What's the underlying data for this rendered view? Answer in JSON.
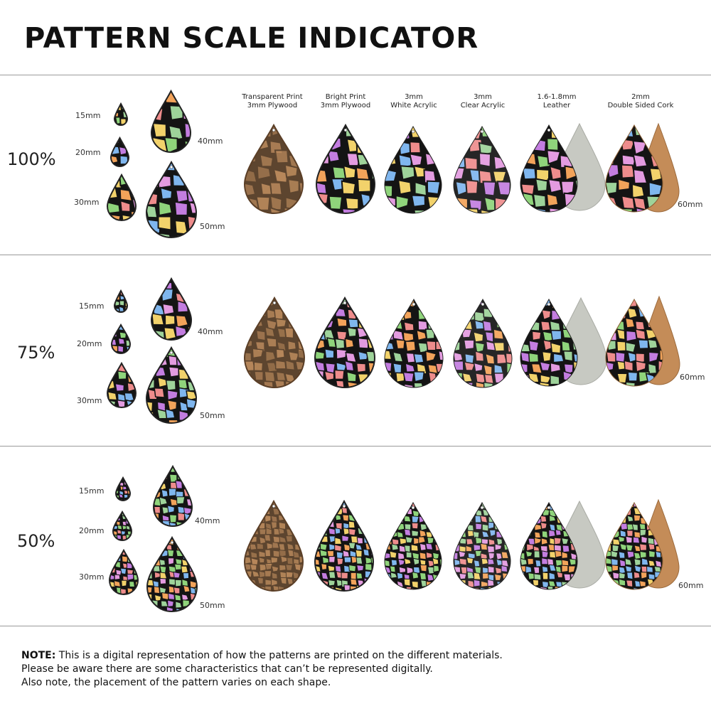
{
  "title": "PATTERN SCALE INDICATOR",
  "materials": [
    {
      "line1": "Transparent Print",
      "line2": "3mm Plywood",
      "style": "plywood"
    },
    {
      "line1": "Bright Print",
      "line2": "3mm Plywood",
      "style": "bright"
    },
    {
      "line1": "3mm",
      "line2": "White Acrylic",
      "style": "white"
    },
    {
      "line1": "3mm",
      "line2": "Clear Acrylic",
      "style": "clear"
    },
    {
      "line1": "1.6-1.8mm",
      "line2": "Leather",
      "style": "leather"
    },
    {
      "line1": "2mm",
      "line2": "Double Sided Cork",
      "style": "cork"
    }
  ],
  "sizes": {
    "s15": "15mm",
    "s20": "20mm",
    "s30": "30mm",
    "s40": "40mm",
    "s50": "50mm",
    "s60": "60mm"
  },
  "scales": [
    {
      "label": "100%",
      "tile_scale": 1.0
    },
    {
      "label": "75%",
      "tile_scale": 0.75
    },
    {
      "label": "50%",
      "tile_scale": 0.5
    }
  ],
  "note": {
    "bold": "NOTE:",
    "line1": " This is a digital representation of how the patterns are printed on the different materials.",
    "line2": "Please be aware there are some characteristics that can’t be represented digitally.",
    "line3": "Also note, the placement of the pattern varies on each shape."
  },
  "colors": {
    "tiles": [
      "#f2a35a",
      "#c37de0",
      "#8fd47b",
      "#7fb6ee",
      "#f2d26b",
      "#ee8c8c",
      "#e39be0",
      "#9ed39a"
    ],
    "grout": "#141414",
    "wood": "#b8875a",
    "leather_back": "#c7c9c2",
    "cork_back": "#c48c58"
  }
}
